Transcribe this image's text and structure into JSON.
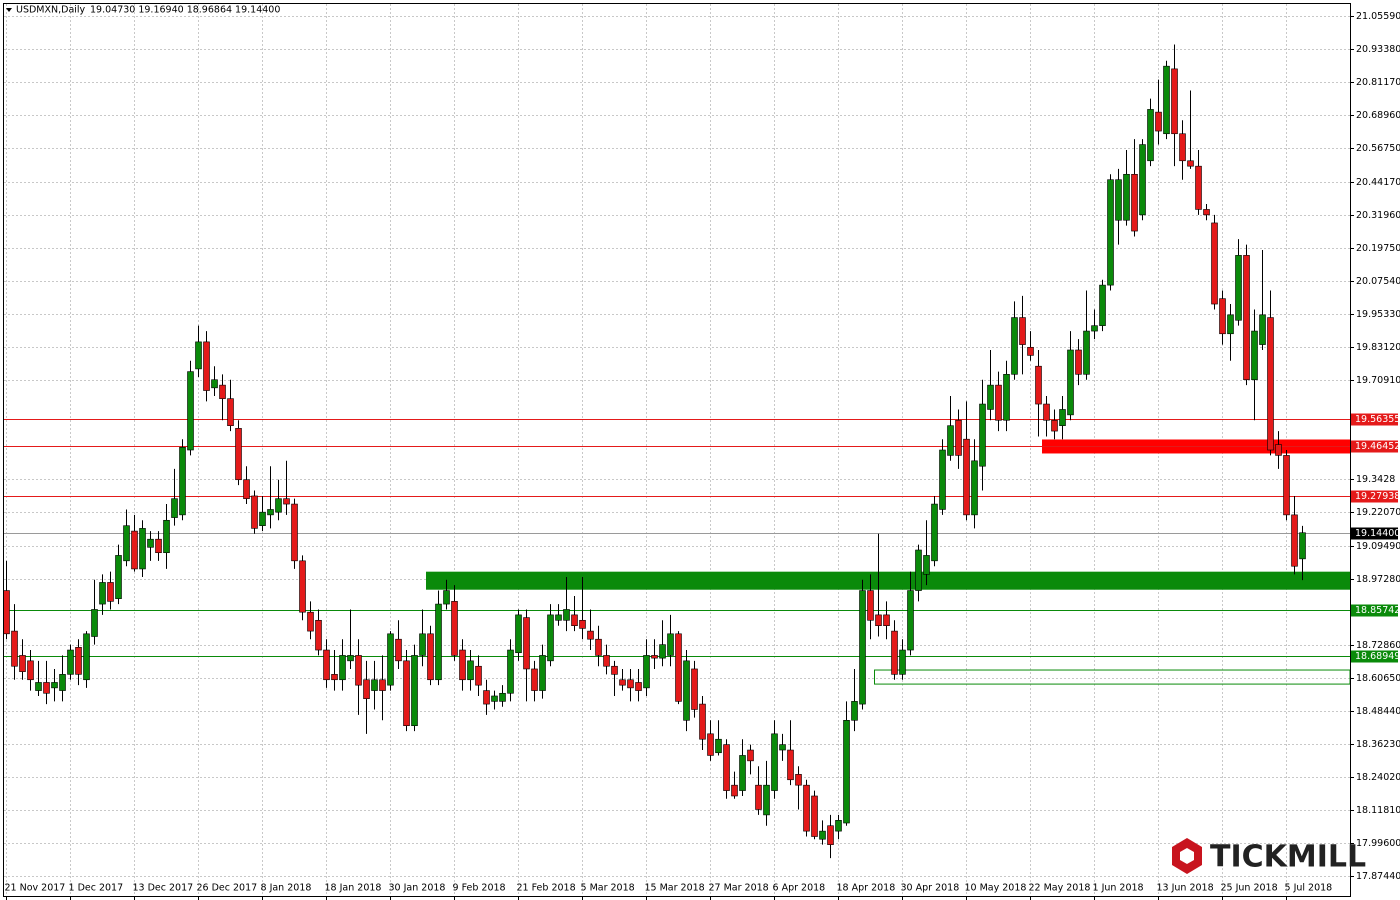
{
  "chart_data": {
    "type": "candlestick",
    "title": "USDMXN,Daily",
    "subtitle": "19.04730 19.16940 18.96864 19.14400",
    "logo": "TICKMILL",
    "categories": [
      "21 Nov 2017",
      null,
      null,
      null,
      null,
      null,
      null,
      null,
      "1 Dec 2017",
      null,
      null,
      null,
      null,
      null,
      null,
      null,
      "13 Dec 2017",
      null,
      null,
      null,
      null,
      null,
      null,
      null,
      "26 Dec 2017",
      null,
      null,
      null,
      null,
      null,
      null,
      null,
      "8 Jan 2018",
      null,
      null,
      null,
      null,
      null,
      null,
      null,
      "18 Jan 2018",
      null,
      null,
      null,
      null,
      null,
      null,
      null,
      "30 Jan 2018",
      null,
      null,
      null,
      null,
      null,
      null,
      null,
      "9 Feb 2018",
      null,
      null,
      null,
      null,
      null,
      null,
      null,
      "21 Feb 2018",
      null,
      null,
      null,
      null,
      null,
      null,
      null,
      "5 Mar 2018",
      null,
      null,
      null,
      null,
      null,
      null,
      null,
      "15 Mar 2018",
      null,
      null,
      null,
      null,
      null,
      null,
      null,
      "27 Mar 2018",
      null,
      null,
      null,
      null,
      null,
      null,
      null,
      "6 Apr 2018",
      null,
      null,
      null,
      null,
      null,
      null,
      null,
      "18 Apr 2018",
      null,
      null,
      null,
      null,
      null,
      null,
      null,
      "30 Apr 2018",
      null,
      null,
      null,
      null,
      null,
      null,
      null,
      "10 May 2018",
      null,
      null,
      null,
      null,
      null,
      null,
      null,
      "22 May 2018",
      null,
      null,
      null,
      null,
      null,
      null,
      null,
      "1 Jun 2018",
      null,
      null,
      null,
      null,
      null,
      null,
      null,
      "13 Jun 2018",
      null,
      null,
      null,
      null,
      null,
      null,
      null,
      "25 Jun 2018",
      null,
      null,
      null,
      null,
      null,
      null,
      null,
      "5 Jul 2018",
      null,
      null
    ],
    "open": [
      18.93,
      18.78,
      18.69,
      18.67,
      18.56,
      18.59,
      18.57,
      18.56,
      18.62,
      18.72,
      18.6,
      18.76,
      18.88,
      18.96,
      18.9,
      19.04,
      19.15,
      19.01,
      19.09,
      19.12,
      19.07,
      19.2,
      19.21,
      19.45,
      19.75,
      19.85,
      19.68,
      19.69,
      19.64,
      19.53,
      19.34,
      19.28,
      19.17,
      19.21,
      19.22,
      19.27,
      19.25,
      19.04,
      18.85,
      18.82,
      18.71,
      18.62,
      18.6,
      18.67,
      18.69,
      18.6,
      18.56,
      18.6,
      18.58,
      18.75,
      18.67,
      18.43,
      18.69,
      18.77,
      18.6,
      18.88,
      18.89,
      18.71,
      18.6,
      18.65,
      18.56,
      18.52,
      18.52,
      18.55,
      18.7,
      18.83,
      18.64,
      18.56,
      18.67,
      18.82,
      18.82,
      18.84,
      18.82,
      18.78,
      18.75,
      18.69,
      18.65,
      18.6,
      18.6,
      18.59,
      18.57,
      18.69,
      18.68,
      18.69,
      18.77,
      18.45,
      18.64,
      18.51,
      18.4,
      18.33,
      18.36,
      18.21,
      18.19,
      18.34,
      18.21,
      18.1,
      18.19,
      18.34,
      18.34,
      18.25,
      18.21,
      18.17,
      18.01,
      18.06,
      18.04,
      18.07,
      18.45,
      18.51,
      18.93,
      18.84,
      18.84,
      18.78,
      18.62,
      18.71,
      18.93,
      18.99,
      19.04,
      19.23,
      19.43,
      19.56,
      19.49,
      19.21,
      19.39,
      19.6,
      19.69,
      19.56,
      19.73,
      19.94,
      19.83,
      19.76,
      19.62,
      19.56,
      19.54,
      19.58,
      19.82,
      19.73,
      19.89,
      19.91,
      20.06,
      20.3,
      20.3,
      20.47,
      20.32,
      20.52,
      20.7,
      20.62,
      20.86,
      20.62,
      20.52,
      20.5,
      20.34,
      20.29,
      20.01,
      19.88,
      19.93,
      20.17,
      19.71,
      19.84,
      19.94,
      19.47,
      19.43,
      19.21,
      19.0473
    ],
    "high": [
      19.04,
      18.88,
      18.75,
      18.71,
      18.67,
      18.67,
      18.64,
      18.69,
      18.73,
      18.75,
      18.78,
      18.97,
      18.99,
      19.0,
      19.1,
      19.23,
      19.21,
      19.19,
      19.15,
      19.15,
      19.25,
      19.38,
      19.49,
      19.78,
      19.91,
      19.89,
      19.76,
      19.73,
      19.71,
      19.56,
      19.39,
      19.3,
      19.28,
      19.39,
      19.34,
      19.41,
      19.27,
      19.06,
      18.89,
      18.86,
      18.75,
      18.71,
      18.75,
      18.86,
      18.75,
      18.67,
      18.67,
      18.69,
      18.78,
      18.82,
      18.71,
      18.73,
      18.86,
      18.8,
      18.93,
      18.97,
      18.95,
      18.75,
      18.71,
      18.69,
      18.6,
      18.56,
      18.58,
      18.75,
      18.86,
      18.86,
      18.67,
      18.73,
      18.88,
      18.88,
      18.98,
      18.91,
      18.98,
      18.86,
      18.8,
      18.73,
      18.67,
      18.64,
      18.64,
      18.64,
      18.75,
      18.75,
      18.82,
      18.84,
      18.78,
      18.71,
      18.67,
      18.54,
      18.45,
      18.45,
      18.38,
      18.26,
      18.38,
      18.36,
      18.28,
      18.3,
      18.45,
      18.4,
      18.45,
      18.28,
      18.23,
      18.19,
      18.08,
      18.1,
      18.1,
      18.52,
      18.64,
      18.97,
      18.99,
      19.14,
      18.89,
      18.82,
      18.75,
      19.0,
      19.1,
      19.19,
      19.28,
      19.49,
      19.65,
      19.6,
      19.63,
      19.49,
      19.71,
      19.82,
      19.74,
      19.78,
      20.0,
      20.02,
      19.89,
      19.82,
      19.65,
      19.6,
      19.65,
      19.89,
      19.86,
      20.04,
      19.97,
      20.08,
      20.47,
      20.49,
      20.56,
      20.6,
      20.6,
      20.75,
      20.82,
      20.89,
      20.95,
      20.67,
      20.78,
      20.56,
      20.36,
      20.32,
      20.04,
      19.99,
      20.23,
      20.21,
      19.97,
      20.19,
      20.04,
      19.52,
      19.45,
      19.28,
      19.1694
    ],
    "low": [
      18.75,
      18.6,
      18.6,
      18.56,
      18.54,
      18.51,
      18.52,
      18.52,
      18.6,
      18.58,
      18.57,
      18.73,
      18.84,
      18.86,
      18.88,
      19.02,
      19.0,
      18.98,
      19.04,
      19.04,
      19.01,
      19.17,
      19.19,
      19.43,
      19.72,
      19.63,
      19.65,
      19.56,
      19.52,
      19.32,
      19.25,
      19.14,
      19.15,
      19.16,
      19.19,
      19.21,
      19.01,
      18.82,
      18.75,
      18.69,
      18.57,
      18.56,
      18.56,
      18.64,
      18.47,
      18.4,
      18.49,
      18.45,
      18.56,
      18.64,
      18.41,
      18.41,
      18.65,
      18.58,
      18.58,
      18.86,
      18.67,
      18.56,
      18.56,
      18.54,
      18.47,
      18.49,
      18.5,
      18.52,
      18.67,
      18.52,
      18.52,
      18.53,
      18.65,
      18.8,
      18.78,
      18.78,
      18.75,
      18.71,
      18.65,
      18.62,
      18.54,
      18.56,
      18.52,
      18.52,
      18.54,
      18.64,
      18.65,
      18.65,
      18.51,
      18.41,
      18.46,
      18.34,
      18.3,
      18.32,
      18.16,
      18.16,
      18.17,
      18.25,
      18.1,
      18.06,
      18.16,
      18.3,
      18.21,
      18.12,
      18.02,
      18.01,
      17.99,
      17.94,
      18.01,
      18.06,
      18.41,
      18.49,
      18.75,
      18.76,
      18.75,
      18.6,
      18.6,
      18.69,
      18.89,
      18.95,
      19.02,
      19.21,
      19.41,
      19.38,
      19.19,
      19.16,
      19.3,
      19.56,
      19.52,
      19.52,
      19.71,
      19.73,
      19.78,
      19.5,
      19.5,
      19.49,
      19.49,
      19.56,
      19.69,
      19.71,
      19.86,
      19.89,
      20.04,
      20.21,
      20.28,
      20.24,
      20.3,
      20.5,
      20.58,
      20.6,
      20.5,
      20.45,
      20.49,
      20.32,
      20.3,
      19.97,
      19.84,
      19.78,
      19.91,
      19.69,
      19.56,
      19.82,
      19.43,
      19.38,
      19.19,
      18.99,
      18.96864
    ],
    "close": [
      18.77,
      18.65,
      18.63,
      18.6,
      18.59,
      18.55,
      18.59,
      18.62,
      18.71,
      18.62,
      18.77,
      18.86,
      18.96,
      18.89,
      19.06,
      19.17,
      19.01,
      19.16,
      19.12,
      19.07,
      19.19,
      19.27,
      19.46,
      19.74,
      19.85,
      19.67,
      19.71,
      19.64,
      19.54,
      19.34,
      19.27,
      19.16,
      19.22,
      19.23,
      19.27,
      19.25,
      19.04,
      18.85,
      18.78,
      18.71,
      18.6,
      18.6,
      18.69,
      18.69,
      18.58,
      18.53,
      18.6,
      18.56,
      18.77,
      18.67,
      18.43,
      18.69,
      18.77,
      18.6,
      18.88,
      18.93,
      18.69,
      18.6,
      18.67,
      18.58,
      18.51,
      18.54,
      18.55,
      18.71,
      18.84,
      18.64,
      18.56,
      18.69,
      18.84,
      18.84,
      18.86,
      18.8,
      18.79,
      18.75,
      18.69,
      18.65,
      18.62,
      18.58,
      18.57,
      18.56,
      18.69,
      18.68,
      18.73,
      18.77,
      18.52,
      18.67,
      18.49,
      18.38,
      18.32,
      18.38,
      18.19,
      18.17,
      18.32,
      18.3,
      18.12,
      18.21,
      18.4,
      18.36,
      18.23,
      18.21,
      18.04,
      18.02,
      18.04,
      17.99,
      18.08,
      18.45,
      18.52,
      18.93,
      18.82,
      18.8,
      18.8,
      18.62,
      18.71,
      18.93,
      19.08,
      19.06,
      19.25,
      19.45,
      19.54,
      19.43,
      19.21,
      19.41,
      19.62,
      19.69,
      19.56,
      19.73,
      19.94,
      19.84,
      19.8,
      19.62,
      19.56,
      19.52,
      19.6,
      19.82,
      19.73,
      19.89,
      19.91,
      20.06,
      20.45,
      20.45,
      20.47,
      20.26,
      20.58,
      20.71,
      20.63,
      20.87,
      20.62,
      20.52,
      20.5,
      20.34,
      20.32,
      19.99,
      19.88,
      19.95,
      20.17,
      19.71,
      19.89,
      19.95,
      19.45,
      19.43,
      19.21,
      19.02,
      19.144
    ],
    "bull_color": "#0a8a0a",
    "bear_color": "#e41a1a",
    "ylim": [
      17.8,
      21.1
    ],
    "yticks": [
      {
        "value": 21.0559,
        "label": "21.05590"
      },
      {
        "value": 20.9338,
        "label": "20.93380"
      },
      {
        "value": 20.8117,
        "label": "20.81170"
      },
      {
        "value": 20.6896,
        "label": "20.68960"
      },
      {
        "value": 20.5675,
        "label": "20.56750"
      },
      {
        "value": 20.4417,
        "label": "20.44170"
      },
      {
        "value": 20.3196,
        "label": "20.31960"
      },
      {
        "value": 20.1975,
        "label": "20.19750"
      },
      {
        "value": 20.0754,
        "label": "20.07540"
      },
      {
        "value": 19.9533,
        "label": "19.95330"
      },
      {
        "value": 19.8312,
        "label": "19.83120"
      },
      {
        "value": 19.7091,
        "label": "19.70910"
      },
      19.3428,
      {
        "value": 19.2207,
        "label": "19.22070"
      },
      {
        "value": 19.0949,
        "label": "19.09490"
      },
      {
        "value": 18.9728,
        "label": "18.97280"
      },
      {
        "value": 18.7286,
        "label": "18.72860"
      },
      {
        "value": 18.6065,
        "label": "18.60650"
      },
      {
        "value": 18.4844,
        "label": "18.48440"
      },
      {
        "value": 18.3623,
        "label": "18.36230"
      },
      {
        "value": 18.2402,
        "label": "18.24020"
      },
      {
        "value": 18.1181,
        "label": "18.11810"
      },
      {
        "value": 17.996,
        "label": "17.99600"
      },
      {
        "value": 17.8744,
        "label": "17.87440"
      }
    ],
    "grid": true,
    "levels": [
      {
        "value": 19.56355,
        "label": "19.56355",
        "color": "#e41a1a"
      },
      {
        "value": 19.46452,
        "label": "19.46452",
        "color": "#e41a1a"
      },
      {
        "value": 19.27938,
        "label": "19.27938",
        "color": "#e41a1a"
      },
      {
        "value": 18.85742,
        "label": "18.85742",
        "color": "#0a8a0a"
      },
      {
        "value": 18.68949,
        "label": "18.68949",
        "color": "#0a8a0a"
      },
      {
        "value": 19.144,
        "label": "19.14400",
        "color": "#000000"
      }
    ],
    "zones": [
      {
        "start": 53,
        "ymin": 18.935,
        "ymax": 18.998,
        "color": "#0a8a0a",
        "filled": true
      },
      {
        "start": 130,
        "ymin": 19.439,
        "ymax": 19.487,
        "color": "#ff0000",
        "filled": true
      },
      {
        "start": 109,
        "ymin": 18.584,
        "ymax": 18.636,
        "color": "#0a8a0a",
        "filled": false
      }
    ]
  }
}
